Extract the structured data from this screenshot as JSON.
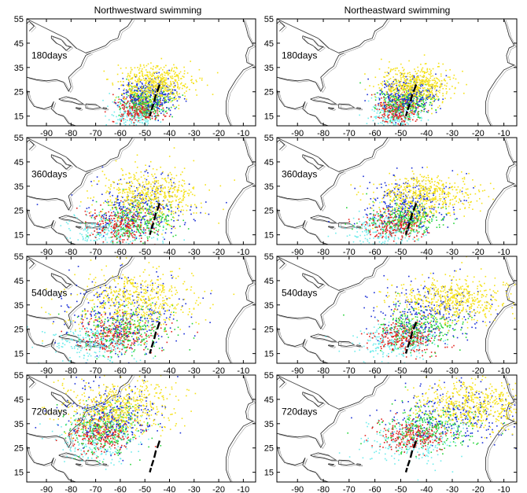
{
  "figure": {
    "column_titles": [
      "Northwestward swimming",
      "Northeastward swimming"
    ]
  },
  "colors": {
    "yellow": "#f5e21a",
    "blue": "#1a2fd6",
    "green": "#27d43b",
    "red": "#e1241f",
    "cyan": "#6fecec",
    "coast": "#222222",
    "release": "#000000"
  },
  "icons": [
    "coastline-outline",
    "release-site-dashes"
  ],
  "chart_data": [
    {
      "type": "scatter",
      "title": "Northwestward swimming",
      "label": "180days",
      "xlim": [
        -98,
        -5
      ],
      "ylim": [
        11,
        55
      ],
      "xticks": [
        -90,
        -80,
        -70,
        -60,
        -50,
        -40,
        -30,
        -20,
        -10
      ],
      "yticks": [
        15,
        25,
        35,
        45,
        55
      ],
      "series": [
        {
          "color": "cyan",
          "center": [
            -53,
            16
          ],
          "spread": [
            5,
            3
          ]
        },
        {
          "color": "red",
          "center": [
            -52,
            18
          ],
          "spread": [
            4.5,
            3
          ]
        },
        {
          "color": "green",
          "center": [
            -49,
            21
          ],
          "spread": [
            5,
            3
          ]
        },
        {
          "color": "blue",
          "center": [
            -48,
            24
          ],
          "spread": [
            6,
            3.5
          ]
        },
        {
          "color": "yellow",
          "center": [
            -46,
            28
          ],
          "spread": [
            7,
            4
          ]
        }
      ]
    },
    {
      "type": "scatter",
      "title": "Northeastward swimming",
      "label": "180days",
      "xlim": [
        -98,
        -5
      ],
      "ylim": [
        11,
        55
      ],
      "xticks": [
        -90,
        -80,
        -70,
        -60,
        -50,
        -40,
        -30,
        -20,
        -10
      ],
      "yticks": [
        15,
        25,
        35,
        45,
        55
      ],
      "series": [
        {
          "color": "cyan",
          "center": [
            -52,
            16
          ],
          "spread": [
            5,
            3
          ]
        },
        {
          "color": "red",
          "center": [
            -51,
            18
          ],
          "spread": [
            4.5,
            3
          ]
        },
        {
          "color": "green",
          "center": [
            -48,
            21
          ],
          "spread": [
            5,
            3
          ]
        },
        {
          "color": "blue",
          "center": [
            -47,
            24
          ],
          "spread": [
            6,
            3.5
          ]
        },
        {
          "color": "yellow",
          "center": [
            -44,
            28
          ],
          "spread": [
            6.5,
            4
          ]
        }
      ]
    },
    {
      "type": "scatter",
      "title": "Northwestward swimming",
      "label": "360days",
      "xlim": [
        -98,
        -5
      ],
      "ylim": [
        11,
        55
      ],
      "xticks": [
        -90,
        -80,
        -70,
        -60,
        -50,
        -40,
        -30,
        -20,
        -10
      ],
      "yticks": [
        15,
        25,
        35,
        45,
        55
      ],
      "series": [
        {
          "color": "cyan",
          "center": [
            -62,
            17
          ],
          "spread": [
            9,
            3.5
          ]
        },
        {
          "color": "red",
          "center": [
            -58,
            19
          ],
          "spread": [
            7,
            3.5
          ]
        },
        {
          "color": "green",
          "center": [
            -53,
            21
          ],
          "spread": [
            8,
            4
          ]
        },
        {
          "color": "blue",
          "center": [
            -52,
            27
          ],
          "spread": [
            10,
            6
          ]
        },
        {
          "color": "yellow",
          "center": [
            -48,
            31
          ],
          "spread": [
            10,
            5
          ]
        }
      ]
    },
    {
      "type": "scatter",
      "title": "Northeastward swimming",
      "label": "360days",
      "xlim": [
        -98,
        -5
      ],
      "ylim": [
        11,
        55
      ],
      "xticks": [
        -90,
        -80,
        -70,
        -60,
        -50,
        -40,
        -30,
        -20,
        -10
      ],
      "yticks": [
        15,
        25,
        35,
        45,
        55
      ],
      "series": [
        {
          "color": "cyan",
          "center": [
            -55,
            17
          ],
          "spread": [
            7,
            3.5
          ]
        },
        {
          "color": "red",
          "center": [
            -52,
            19
          ],
          "spread": [
            6,
            3
          ]
        },
        {
          "color": "green",
          "center": [
            -48,
            22
          ],
          "spread": [
            7,
            3.5
          ]
        },
        {
          "color": "blue",
          "center": [
            -46,
            28
          ],
          "spread": [
            9,
            5
          ]
        },
        {
          "color": "yellow",
          "center": [
            -40,
            31
          ],
          "spread": [
            9,
            4.5
          ]
        }
      ]
    },
    {
      "type": "scatter",
      "title": "Northwestward swimming",
      "label": "540days",
      "xlim": [
        -98,
        -5
      ],
      "ylim": [
        11,
        55
      ],
      "xticks": [
        -90,
        -80,
        -70,
        -60,
        -50,
        -40,
        -30,
        -20,
        -10
      ],
      "yticks": [
        15,
        25,
        35,
        45,
        55
      ],
      "series": [
        {
          "color": "cyan",
          "center": [
            -70,
            19
          ],
          "spread": [
            10,
            4
          ]
        },
        {
          "color": "red",
          "center": [
            -62,
            23
          ],
          "spread": [
            8,
            4
          ]
        },
        {
          "color": "green",
          "center": [
            -58,
            25
          ],
          "spread": [
            9,
            5
          ]
        },
        {
          "color": "blue",
          "center": [
            -58,
            32
          ],
          "spread": [
            12,
            8
          ]
        },
        {
          "color": "yellow",
          "center": [
            -54,
            37
          ],
          "spread": [
            12,
            6
          ]
        }
      ]
    },
    {
      "type": "scatter",
      "title": "Northeastward swimming",
      "label": "540days",
      "xlim": [
        -98,
        -5
      ],
      "ylim": [
        11,
        55
      ],
      "xticks": [
        -90,
        -80,
        -70,
        -60,
        -50,
        -40,
        -30,
        -20,
        -10
      ],
      "yticks": [
        15,
        25,
        35,
        45,
        55
      ],
      "series": [
        {
          "color": "cyan",
          "center": [
            -50,
            20
          ],
          "spread": [
            8,
            4
          ]
        },
        {
          "color": "red",
          "center": [
            -48,
            22
          ],
          "spread": [
            6,
            3.5
          ]
        },
        {
          "color": "green",
          "center": [
            -43,
            26
          ],
          "spread": [
            8,
            4
          ]
        },
        {
          "color": "blue",
          "center": [
            -40,
            32
          ],
          "spread": [
            11,
            6
          ]
        },
        {
          "color": "yellow",
          "center": [
            -30,
            37
          ],
          "spread": [
            11,
            4.5
          ]
        }
      ]
    },
    {
      "type": "scatter",
      "title": "Northwestward swimming",
      "label": "720days",
      "xlim": [
        -98,
        -5
      ],
      "ylim": [
        11,
        55
      ],
      "xticks": [
        -90,
        -80,
        -70,
        -60,
        -50,
        -40,
        -30,
        -20,
        -10
      ],
      "yticks": [
        15,
        25,
        35,
        45,
        55
      ],
      "series": [
        {
          "color": "cyan",
          "center": [
            -70,
            29
          ],
          "spread": [
            8,
            5
          ]
        },
        {
          "color": "red",
          "center": [
            -68,
            31
          ],
          "spread": [
            6,
            4
          ]
        },
        {
          "color": "green",
          "center": [
            -65,
            33
          ],
          "spread": [
            8,
            5
          ]
        },
        {
          "color": "blue",
          "center": [
            -62,
            39
          ],
          "spread": [
            10,
            7
          ]
        },
        {
          "color": "yellow",
          "center": [
            -60,
            42
          ],
          "spread": [
            11,
            6
          ]
        }
      ]
    },
    {
      "type": "scatter",
      "title": "Northeastward swimming",
      "label": "720days",
      "xlim": [
        -98,
        -5
      ],
      "ylim": [
        11,
        55
      ],
      "xticks": [
        -90,
        -80,
        -70,
        -60,
        -50,
        -40,
        -30,
        -20,
        -10
      ],
      "yticks": [
        15,
        25,
        35,
        45,
        55
      ],
      "series": [
        {
          "color": "cyan",
          "center": [
            -45,
            28
          ],
          "spread": [
            10,
            5
          ]
        },
        {
          "color": "red",
          "center": [
            -45,
            30
          ],
          "spread": [
            6,
            3
          ]
        },
        {
          "color": "green",
          "center": [
            -38,
            33
          ],
          "spread": [
            10,
            5
          ]
        },
        {
          "color": "blue",
          "center": [
            -30,
            39
          ],
          "spread": [
            13,
            6
          ]
        },
        {
          "color": "yellow",
          "center": [
            -22,
            43
          ],
          "spread": [
            11,
            5
          ]
        }
      ]
    }
  ]
}
